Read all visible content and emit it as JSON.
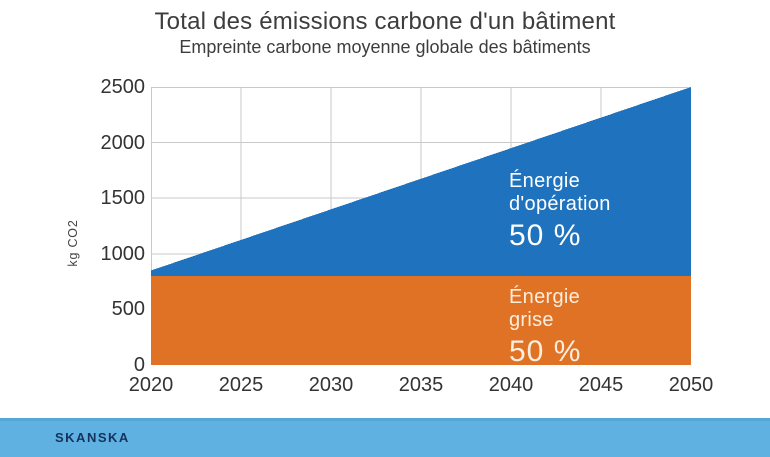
{
  "header": {
    "title": "Total des émissions carbone d'un bâtiment",
    "subtitle": "Empreinte carbone moyenne globale des bâtiments"
  },
  "axis": {
    "ylabel": "kg CO2"
  },
  "annotations": {
    "operation": {
      "line1": "Énergie",
      "line2": "d'opération",
      "pct": "50 %"
    },
    "grise": {
      "line1": "Énergie",
      "line2": "grise",
      "pct": "50 %"
    }
  },
  "footer": {
    "brand": "SKANSKA"
  },
  "colors": {
    "operation_blue": "#1f72bd",
    "grise_orange": "#e07226",
    "label_on_blue": "#ffffff",
    "label_on_orange": "#fbeedd",
    "footer_blue": "#5fb1e2",
    "brand_navy": "#16325c",
    "grid": "#c9c9c9",
    "text": "#3d3d3d"
  },
  "chart_data": {
    "type": "area",
    "stacked": true,
    "title": "Total des émissions carbone d'un bâtiment",
    "subtitle": "Empreinte carbone moyenne globale des bâtiments",
    "xlabel": "",
    "ylabel": "kg CO2",
    "x": [
      2020,
      2025,
      2030,
      2035,
      2040,
      2045,
      2050
    ],
    "xticks": [
      2020,
      2025,
      2030,
      2035,
      2040,
      2045,
      2050
    ],
    "yticks": [
      0,
      500,
      1000,
      1500,
      2000,
      2500
    ],
    "xlim": [
      2020,
      2050
    ],
    "ylim": [
      0,
      2500
    ],
    "grid": true,
    "legend_position": "labels-inside-areas",
    "series": [
      {
        "name": "Énergie grise",
        "share_label": "50 %",
        "color": "#e07226",
        "values": [
          800,
          800,
          800,
          800,
          800,
          800,
          800
        ]
      },
      {
        "name": "Énergie d'opération",
        "share_label": "50 %",
        "color": "#1f72bd",
        "values": [
          50,
          325,
          600,
          875,
          1150,
          1425,
          1700
        ]
      }
    ]
  }
}
